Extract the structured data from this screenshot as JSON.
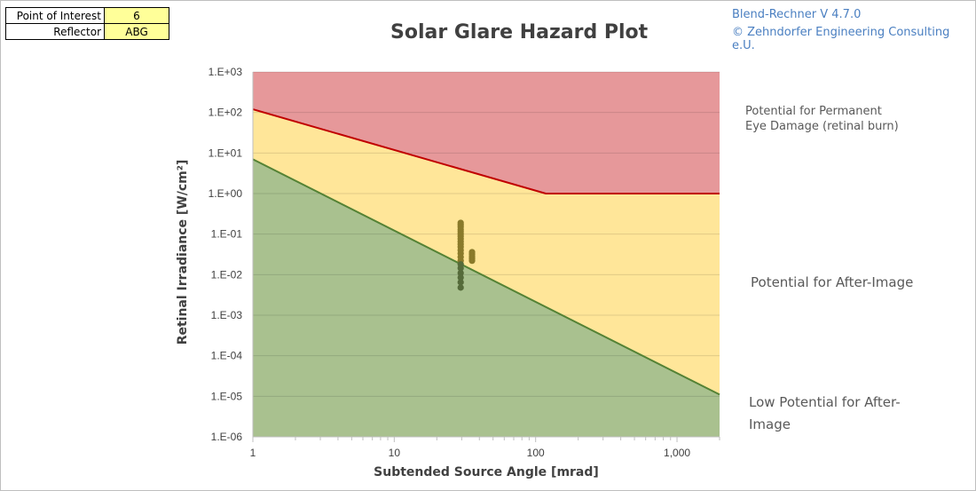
{
  "info_table": {
    "poi_label": "Point of Interest",
    "poi_value": "6",
    "reflector_label": "Reflector",
    "reflector_value": "ABG"
  },
  "credits": {
    "line1": "Blend-Rechner   V 4.7.0",
    "line2": "© Zehndorfer Engineering Consulting e.U."
  },
  "region_labels": {
    "permanent_1": "Potential for Permanent",
    "permanent_2": "Eye Damage (retinal burn)",
    "after_image": "Potential for After-Image",
    "low_1": "Low Potential for After-",
    "low_2": "Image"
  },
  "colors": {
    "red_zone": "#e6989a",
    "yellow_zone": "#ffe699",
    "green_zone": "#a9c18f",
    "red_line": "#c00000",
    "green_line": "#548235",
    "points": "#8a7a2a",
    "points_low": "#556b3a"
  },
  "chart_data": {
    "type": "scatter",
    "title": "Solar Glare Hazard Plot",
    "xlabel": "Subtended Source Angle [mrad]",
    "ylabel": "Retinal Irradiance  [W/cm²]",
    "x_scale": "log",
    "y_scale": "log",
    "xlim": [
      1,
      2000
    ],
    "ylim": [
      1e-06,
      1000
    ],
    "x_ticks": [
      {
        "value": 1,
        "label": "1"
      },
      {
        "value": 10,
        "label": "10"
      },
      {
        "value": 100,
        "label": "100"
      },
      {
        "value": 1000,
        "label": "1,000"
      }
    ],
    "y_ticks": [
      {
        "value": 1000,
        "label": "1.E+03"
      },
      {
        "value": 100,
        "label": "1.E+02"
      },
      {
        "value": 10,
        "label": "1.E+01"
      },
      {
        "value": 1,
        "label": "1.E+00"
      },
      {
        "value": 0.1,
        "label": "1.E-01"
      },
      {
        "value": 0.01,
        "label": "1.E-02"
      },
      {
        "value": 0.001,
        "label": "1.E-03"
      },
      {
        "value": 0.0001,
        "label": "1.E-04"
      },
      {
        "value": 1e-05,
        "label": "1.E-05"
      },
      {
        "value": 1e-06,
        "label": "1.E-06"
      }
    ],
    "grid": "horizontal",
    "legend": "none",
    "boundaries": [
      {
        "name": "retinal burn threshold",
        "points": [
          [
            1,
            120
          ],
          [
            118,
            1.0
          ],
          [
            2000,
            1.0
          ]
        ]
      },
      {
        "name": "after-image threshold",
        "points": [
          [
            1,
            7
          ],
          [
            2000,
            1.1e-05
          ]
        ]
      }
    ],
    "series": [
      {
        "points": [
          [
            29.5,
            0.19
          ],
          [
            29.5,
            0.17
          ],
          [
            29.5,
            0.15
          ],
          [
            29.5,
            0.13
          ],
          [
            29.5,
            0.115
          ],
          [
            29.5,
            0.1
          ],
          [
            29.5,
            0.088
          ],
          [
            29.5,
            0.076
          ],
          [
            29.5,
            0.065
          ],
          [
            29.5,
            0.056
          ],
          [
            29.5,
            0.048
          ],
          [
            29.5,
            0.04
          ],
          [
            29.5,
            0.033
          ],
          [
            29.5,
            0.027
          ],
          [
            29.5,
            0.022
          ],
          [
            29.5,
            0.018
          ],
          [
            29.5,
            0.0145
          ],
          [
            29.5,
            0.011
          ],
          [
            29.5,
            0.0085
          ],
          [
            29.5,
            0.0065
          ],
          [
            29.5,
            0.0048
          ],
          [
            35.5,
            0.036
          ],
          [
            35.5,
            0.032
          ],
          [
            35.5,
            0.028
          ],
          [
            35.5,
            0.025
          ],
          [
            35.5,
            0.022
          ]
        ]
      }
    ]
  }
}
